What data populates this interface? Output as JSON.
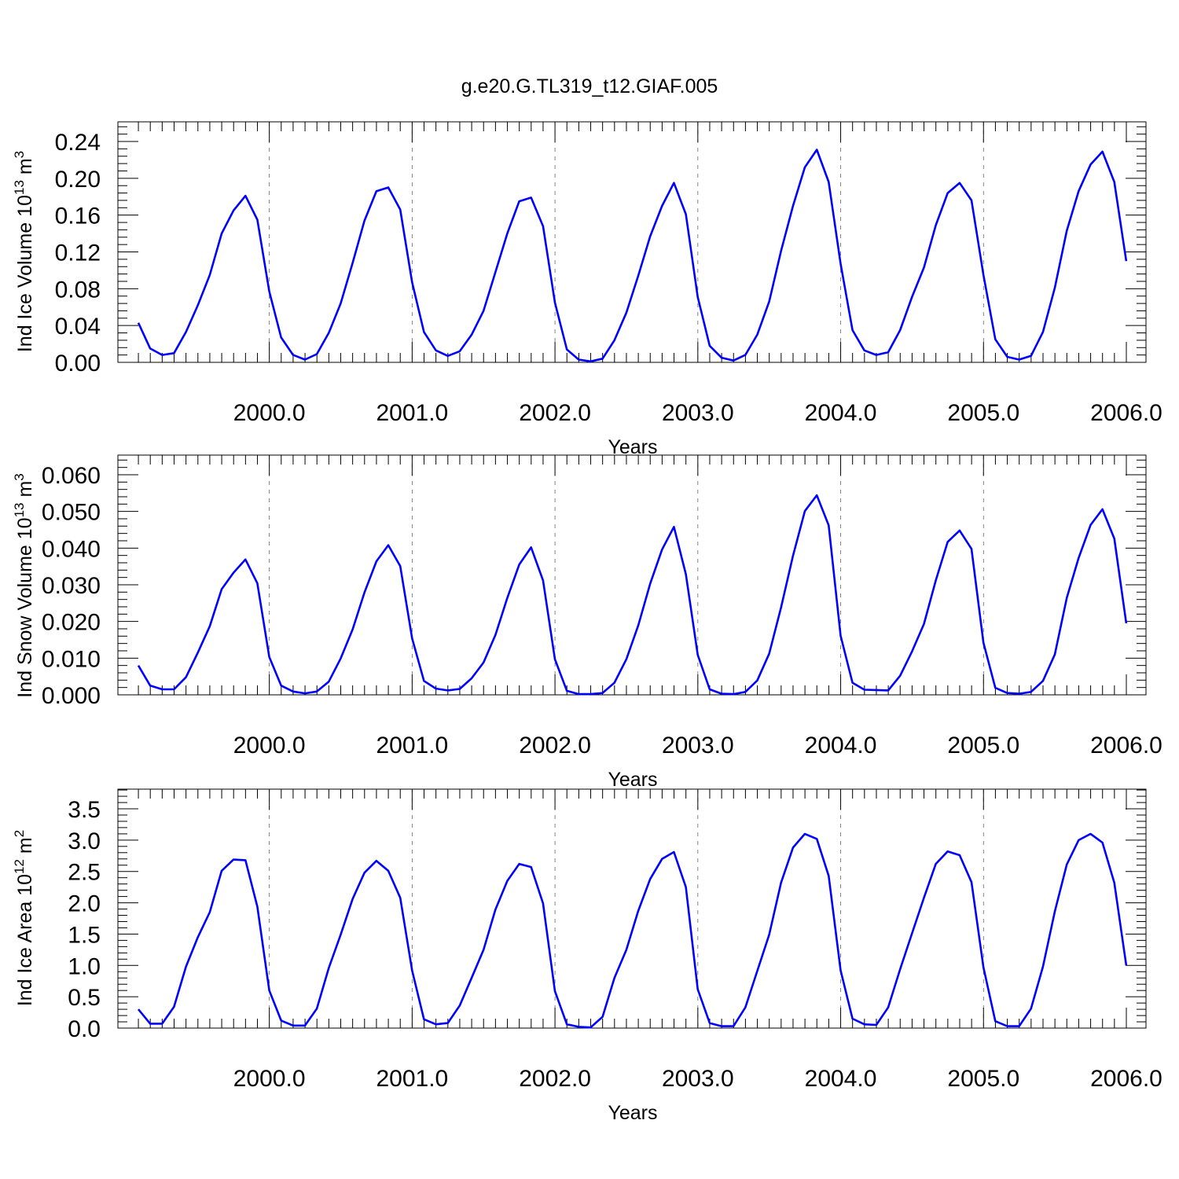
{
  "title": "g.e20.G.TL319_t12.GIAF.005",
  "styles": {
    "line_color": "#0000ff",
    "axis_color": "#000000",
    "grid_color": "#000000"
  },
  "chart_data": [
    {
      "type": "line",
      "xlabel": "Years",
      "ylabel": {
        "prefix": "Ind Ice Volume 10",
        "exponent": "13",
        "unit": " m",
        "unit_power": "3"
      },
      "xlim": [
        1999.083,
        2006.0
      ],
      "ylim": [
        0.0,
        0.24
      ],
      "yticks": [
        0.0,
        0.04,
        0.08,
        0.12,
        0.16,
        0.2,
        0.24
      ],
      "ytick_labels": [
        "0.00",
        "0.04",
        "0.08",
        "0.12",
        "0.16",
        "0.20",
        "0.24"
      ],
      "xticks": [
        2000,
        2001,
        2002,
        2003,
        2004,
        2005,
        2006
      ],
      "xtick_labels": [
        "2000.0",
        "2001.0",
        "2002.0",
        "2003.0",
        "2004.0",
        "2005.0",
        "2006.0"
      ],
      "vertical_gridlines": "dashed at each year",
      "series": [
        {
          "x_start": 1999.083,
          "x_step": 0.08333,
          "values": [
            0.043,
            0.015,
            0.008,
            0.01,
            0.033,
            0.062,
            0.095,
            0.14,
            0.165,
            0.181,
            0.155,
            0.077,
            0.027,
            0.008,
            0.003,
            0.009,
            0.032,
            0.064,
            0.108,
            0.154,
            0.186,
            0.19,
            0.166,
            0.087,
            0.033,
            0.013,
            0.007,
            0.012,
            0.03,
            0.056,
            0.098,
            0.14,
            0.175,
            0.179,
            0.148,
            0.065,
            0.014,
            0.003,
            0.001,
            0.004,
            0.024,
            0.054,
            0.094,
            0.137,
            0.17,
            0.195,
            0.161,
            0.071,
            0.018,
            0.005,
            0.002,
            0.008,
            0.03,
            0.066,
            0.121,
            0.17,
            0.212,
            0.231,
            0.196,
            0.107,
            0.035,
            0.013,
            0.008,
            0.011,
            0.035,
            0.071,
            0.103,
            0.149,
            0.184,
            0.195,
            0.176,
            0.095,
            0.025,
            0.006,
            0.003,
            0.007,
            0.033,
            0.081,
            0.143,
            0.186,
            0.215,
            0.229,
            0.196,
            0.11
          ]
        }
      ]
    },
    {
      "type": "line",
      "xlabel": "Years",
      "ylabel": {
        "prefix": "Ind Snow Volume 10",
        "exponent": "13",
        "unit": " m",
        "unit_power": "3"
      },
      "xlim": [
        1999.083,
        2006.0
      ],
      "ylim": [
        0.0,
        0.06
      ],
      "yticks": [
        0.0,
        0.01,
        0.02,
        0.03,
        0.04,
        0.05,
        0.06
      ],
      "ytick_labels": [
        "0.000",
        "0.010",
        "0.020",
        "0.030",
        "0.040",
        "0.050",
        "0.060"
      ],
      "xticks": [
        2000,
        2001,
        2002,
        2003,
        2004,
        2005,
        2006
      ],
      "xtick_labels": [
        "2000.0",
        "2001.0",
        "2002.0",
        "2003.0",
        "2004.0",
        "2005.0",
        "2006.0"
      ],
      "vertical_gridlines": "dashed at each year",
      "series": [
        {
          "x_start": 1999.083,
          "x_step": 0.08333,
          "values": [
            0.008,
            0.0025,
            0.0015,
            0.0015,
            0.0048,
            0.0115,
            0.0187,
            0.0288,
            0.0333,
            0.0369,
            0.0304,
            0.0103,
            0.0025,
            0.0009,
            0.0004,
            0.0009,
            0.0036,
            0.0099,
            0.0178,
            0.0279,
            0.0364,
            0.0408,
            0.0351,
            0.0154,
            0.0038,
            0.0017,
            0.0012,
            0.0016,
            0.0045,
            0.0088,
            0.0163,
            0.0264,
            0.0355,
            0.0402,
            0.0312,
            0.0097,
            0.0011,
            0.0002,
            0.0002,
            0.0005,
            0.0033,
            0.0097,
            0.0189,
            0.0303,
            0.0396,
            0.0458,
            0.0329,
            0.0109,
            0.0015,
            0.0003,
            0.0002,
            0.0008,
            0.0039,
            0.0112,
            0.0238,
            0.0379,
            0.0501,
            0.0544,
            0.0462,
            0.0161,
            0.0033,
            0.0014,
            0.0013,
            0.0012,
            0.0052,
            0.0118,
            0.0193,
            0.0312,
            0.0417,
            0.0448,
            0.0398,
            0.0142,
            0.0019,
            0.0005,
            0.0003,
            0.0008,
            0.0038,
            0.011,
            0.0264,
            0.0373,
            0.0463,
            0.0506,
            0.0426,
            0.0195
          ]
        }
      ]
    },
    {
      "type": "line",
      "xlabel": "Years",
      "ylabel": {
        "prefix": "Ind Ice Area 10",
        "exponent": "12",
        "unit": " m",
        "unit_power": "2"
      },
      "xlim": [
        1999.083,
        2006.0
      ],
      "ylim": [
        0.0,
        3.5
      ],
      "yticks": [
        0.0,
        0.5,
        1.0,
        1.5,
        2.0,
        2.5,
        3.0,
        3.5
      ],
      "ytick_labels": [
        "0.0",
        "0.5",
        "1.0",
        "1.5",
        "2.0",
        "2.5",
        "3.0",
        "3.5"
      ],
      "xticks": [
        2000,
        2001,
        2002,
        2003,
        2004,
        2005,
        2006
      ],
      "xtick_labels": [
        "2000.0",
        "2001.0",
        "2002.0",
        "2003.0",
        "2004.0",
        "2005.0",
        "2006.0"
      ],
      "vertical_gridlines": "dashed at each year",
      "series": [
        {
          "x_start": 1999.083,
          "x_step": 0.08333,
          "values": [
            0.3,
            0.07,
            0.07,
            0.34,
            0.98,
            1.45,
            1.85,
            2.51,
            2.69,
            2.68,
            1.94,
            0.6,
            0.12,
            0.04,
            0.04,
            0.31,
            0.96,
            1.49,
            2.06,
            2.48,
            2.67,
            2.51,
            2.08,
            0.92,
            0.14,
            0.06,
            0.08,
            0.36,
            0.8,
            1.25,
            1.89,
            2.35,
            2.62,
            2.57,
            1.99,
            0.59,
            0.06,
            0.02,
            0.01,
            0.18,
            0.8,
            1.25,
            1.87,
            2.38,
            2.7,
            2.81,
            2.25,
            0.62,
            0.08,
            0.03,
            0.03,
            0.33,
            0.91,
            1.49,
            2.32,
            2.88,
            3.1,
            3.02,
            2.43,
            0.92,
            0.15,
            0.06,
            0.05,
            0.33,
            0.94,
            1.51,
            2.08,
            2.62,
            2.82,
            2.76,
            2.33,
            0.97,
            0.11,
            0.03,
            0.03,
            0.31,
            0.98,
            1.86,
            2.61,
            3.0,
            3.1,
            2.96,
            2.32,
            1.0
          ]
        }
      ]
    }
  ]
}
